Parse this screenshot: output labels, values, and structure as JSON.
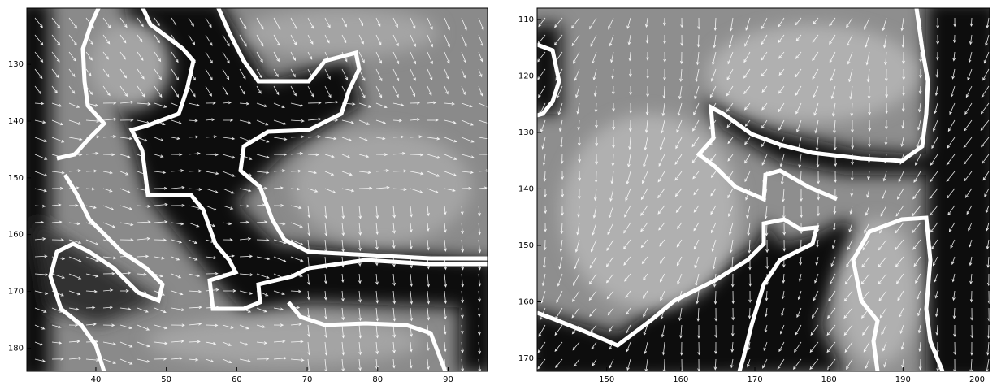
{
  "panels": [
    {
      "xlim": [
        30.2,
        95.6
      ],
      "ylim": [
        120.1,
        184.1
      ],
      "xticks": [
        40,
        50,
        60,
        70,
        80,
        90
      ],
      "yticks": [
        130,
        140,
        150,
        160,
        170,
        180
      ]
    },
    {
      "xlim": [
        140.6,
        201.7
      ],
      "ylim": [
        108,
        172.3
      ],
      "xticks": [
        150,
        160,
        170,
        180,
        190,
        200
      ],
      "yticks": [
        110,
        120,
        130,
        140,
        150,
        160,
        170
      ]
    }
  ]
}
